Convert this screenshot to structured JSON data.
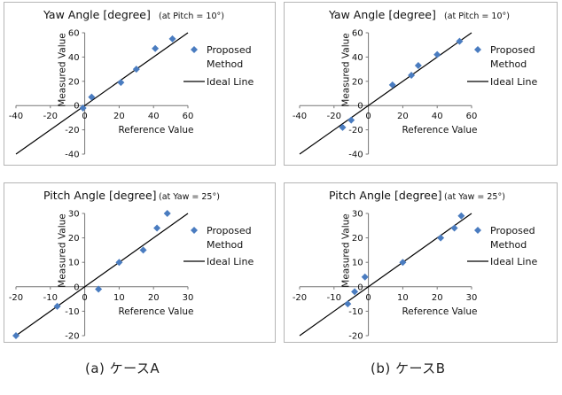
{
  "chart_data": [
    {
      "type": "scatter",
      "title": "Yaw Angle [degree]",
      "subtitle": "(at Pitch = 10°)",
      "xlabel": "Reference Value",
      "ylabel": "Measured Value",
      "xlim": [
        -40,
        60
      ],
      "ylim": [
        -40,
        60
      ],
      "xticks": [
        "-40",
        "-20",
        "0",
        "20",
        "40",
        "60"
      ],
      "yticks": [
        "-40",
        "-20",
        "0",
        "20",
        "40",
        "60"
      ],
      "series": [
        {
          "name": "Proposed Method",
          "kind": "points",
          "color": "#4a7cc0",
          "points": [
            [
              -1,
              -2
            ],
            [
              4,
              7
            ],
            [
              21,
              19
            ],
            [
              30,
              30
            ],
            [
              41,
              47
            ],
            [
              51,
              55
            ]
          ]
        },
        {
          "name": "Ideal Line",
          "kind": "line",
          "color": "#000000",
          "points": [
            [
              -40,
              -40
            ],
            [
              60,
              60
            ]
          ]
        }
      ],
      "legend_position": "right",
      "caption": "(a) ケースA"
    },
    {
      "type": "scatter",
      "title": "Yaw Angle [degree]",
      "subtitle": "(at Pitch = 10°)",
      "xlabel": "Reference Value",
      "ylabel": "Measured Value",
      "xlim": [
        -40,
        60
      ],
      "ylim": [
        -40,
        60
      ],
      "xticks": [
        "-40",
        "-20",
        "0",
        "20",
        "40",
        "60"
      ],
      "yticks": [
        "-40",
        "-20",
        "0",
        "20",
        "40",
        "60"
      ],
      "series": [
        {
          "name": "Proposed Method",
          "kind": "points",
          "color": "#4a7cc0",
          "points": [
            [
              -15,
              -18
            ],
            [
              -10,
              -12
            ],
            [
              14,
              17
            ],
            [
              25,
              25
            ],
            [
              29,
              33
            ],
            [
              40,
              42
            ],
            [
              53,
              53
            ]
          ]
        },
        {
          "name": "Ideal Line",
          "kind": "line",
          "color": "#000000",
          "points": [
            [
              -40,
              -40
            ],
            [
              60,
              60
            ]
          ]
        }
      ],
      "legend_position": "right",
      "caption": "(b) ケースB"
    },
    {
      "type": "scatter",
      "title": "Pitch Angle [degree]",
      "subtitle": "(at Yaw = 25°)",
      "xlabel": "Reference Value",
      "ylabel": "Measured Value",
      "xlim": [
        -20,
        30
      ],
      "ylim": [
        -20,
        30
      ],
      "xticks": [
        "-20",
        "-10",
        "0",
        "10",
        "20",
        "30"
      ],
      "yticks": [
        "-20",
        "-10",
        "0",
        "10",
        "20",
        "30"
      ],
      "series": [
        {
          "name": "Proposed Method",
          "kind": "points",
          "color": "#4a7cc0",
          "points": [
            [
              -20,
              -20
            ],
            [
              -8,
              -8
            ],
            [
              4,
              -1
            ],
            [
              10,
              10
            ],
            [
              17,
              15
            ],
            [
              21,
              24
            ],
            [
              24,
              30
            ]
          ]
        },
        {
          "name": "Ideal Line",
          "kind": "line",
          "color": "#000000",
          "points": [
            [
              -20,
              -20
            ],
            [
              30,
              30
            ]
          ]
        }
      ],
      "legend_position": "right"
    },
    {
      "type": "scatter",
      "title": "Pitch Angle [degree]",
      "subtitle": "(at Yaw = 25°)",
      "xlabel": "Reference Value",
      "ylabel": "Measured Value",
      "xlim": [
        -20,
        30
      ],
      "ylim": [
        -20,
        30
      ],
      "xticks": [
        "-20",
        "-10",
        "0",
        "10",
        "20",
        "30"
      ],
      "yticks": [
        "-20",
        "-10",
        "0",
        "10",
        "20",
        "30"
      ],
      "series": [
        {
          "name": "Proposed Method",
          "kind": "points",
          "color": "#4a7cc0",
          "points": [
            [
              -6,
              -7
            ],
            [
              -4,
              -2
            ],
            [
              -1,
              4
            ],
            [
              10,
              10
            ],
            [
              21,
              20
            ],
            [
              25,
              24
            ],
            [
              27,
              29
            ]
          ]
        },
        {
          "name": "Ideal Line",
          "kind": "line",
          "color": "#000000",
          "points": [
            [
              -20,
              -20
            ],
            [
              30,
              30
            ]
          ]
        }
      ],
      "legend_position": "right"
    }
  ]
}
